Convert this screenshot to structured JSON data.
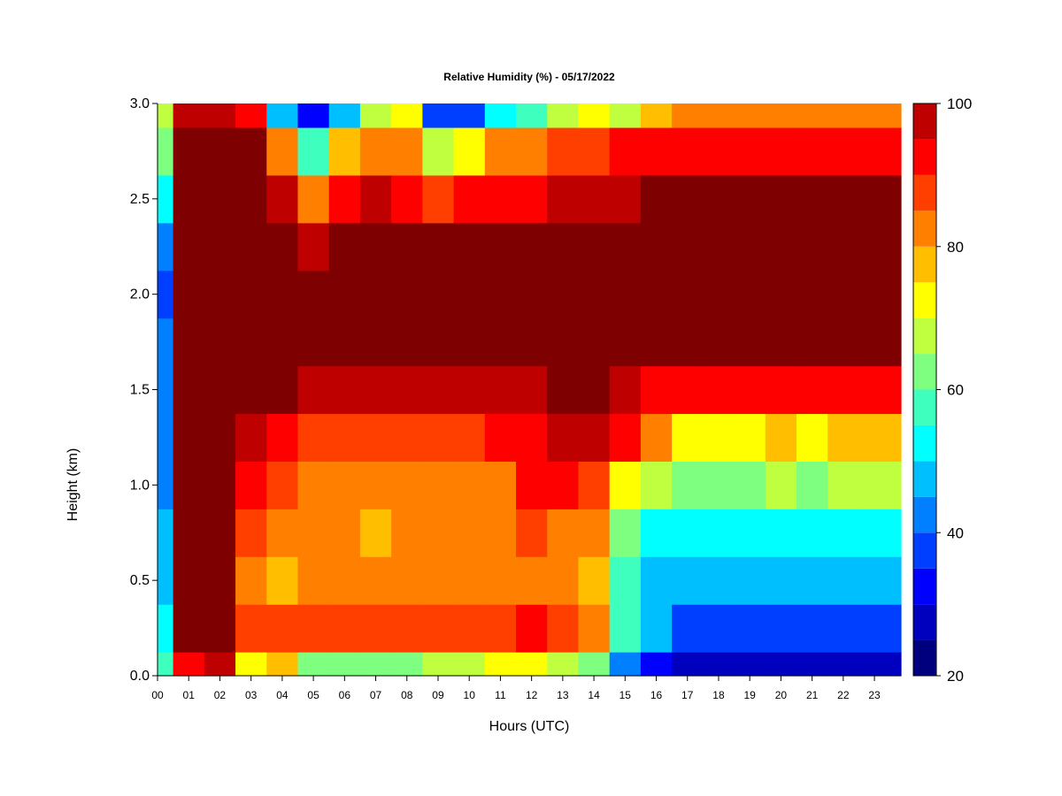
{
  "chart_data": {
    "type": "heatmap",
    "title": "Relative Humidity (%) - 05/17/2022",
    "xlabel": "Hours (UTC)",
    "ylabel": "Height (km)",
    "x_ticks": [
      "00",
      "01",
      "02",
      "03",
      "04",
      "05",
      "06",
      "07",
      "08",
      "09",
      "10",
      "11",
      "12",
      "13",
      "14",
      "15",
      "16",
      "17",
      "18",
      "19",
      "20",
      "21",
      "22",
      "23"
    ],
    "y_ticks": [
      "0.0",
      "0.5",
      "1.0",
      "1.5",
      "2.0",
      "2.5",
      "3.0"
    ],
    "xlim": [
      0,
      23.85
    ],
    "ylim": [
      0,
      3.0
    ],
    "colorbar": {
      "min": 20,
      "max": 100,
      "step": 5,
      "tick_labels": [
        "20",
        "40",
        "60",
        "80",
        "100"
      ],
      "colors": [
        "#00007f",
        "#0000bf",
        "#0000ff",
        "#003fff",
        "#007fff",
        "#00bfff",
        "#00ffff",
        "#3fffbf",
        "#7fff7f",
        "#bfff3f",
        "#ffff00",
        "#ffbf00",
        "#ff7f00",
        "#ff3f00",
        "#ff0000",
        "#bf0000",
        "#7f0000"
      ]
    },
    "z_description": "Relative humidity (%) over time (hours UTC) and height (km)",
    "hours": [
      0,
      1,
      2,
      3,
      4,
      5,
      6,
      7,
      8,
      9,
      10,
      11,
      12,
      13,
      14,
      15,
      16,
      17,
      18,
      19,
      20,
      21,
      22,
      23
    ],
    "heights": [
      0.0,
      0.25,
      0.5,
      0.75,
      1.0,
      1.25,
      1.5,
      1.75,
      2.0,
      2.25,
      2.5,
      2.75,
      3.0
    ],
    "values": [
      [
        55,
        92,
        95,
        72,
        78,
        62,
        62,
        64,
        64,
        66,
        66,
        70,
        72,
        66,
        64,
        40,
        32,
        26,
        25,
        25,
        26,
        26,
        27,
        27
      ],
      [
        50,
        100,
        100,
        88,
        85,
        86,
        86,
        87,
        88,
        87,
        87,
        88,
        92,
        86,
        82,
        55,
        45,
        38,
        36,
        35,
        36,
        37,
        38,
        38
      ],
      [
        48,
        100,
        100,
        84,
        78,
        80,
        80,
        81,
        82,
        81,
        81,
        82,
        84,
        82,
        78,
        58,
        48,
        46,
        46,
        46,
        48,
        48,
        48,
        48
      ],
      [
        46,
        100,
        100,
        86,
        82,
        80,
        80,
        78,
        80,
        80,
        80,
        82,
        86,
        84,
        80,
        62,
        52,
        52,
        52,
        52,
        54,
        54,
        54,
        54
      ],
      [
        44,
        100,
        100,
        92,
        88,
        82,
        82,
        80,
        82,
        82,
        82,
        84,
        90,
        92,
        86,
        72,
        66,
        64,
        62,
        64,
        66,
        64,
        66,
        66
      ],
      [
        42,
        100,
        100,
        96,
        94,
        88,
        88,
        86,
        88,
        88,
        88,
        90,
        94,
        96,
        96,
        90,
        84,
        74,
        74,
        74,
        76,
        74,
        76,
        76
      ],
      [
        40,
        100,
        100,
        100,
        100,
        98,
        98,
        98,
        98,
        98,
        98,
        98,
        99,
        100,
        100,
        98,
        94,
        92,
        92,
        90,
        90,
        90,
        90,
        92
      ],
      [
        40,
        100,
        100,
        100,
        100,
        100,
        100,
        100,
        100,
        100,
        100,
        100,
        100,
        100,
        100,
        100,
        100,
        100,
        100,
        100,
        100,
        100,
        100,
        100
      ],
      [
        38,
        100,
        100,
        100,
        100,
        100,
        100,
        100,
        100,
        100,
        100,
        100,
        100,
        100,
        100,
        100,
        100,
        100,
        100,
        100,
        100,
        100,
        100,
        100
      ],
      [
        42,
        100,
        100,
        100,
        100,
        98,
        100,
        100,
        100,
        100,
        100,
        100,
        100,
        100,
        100,
        100,
        100,
        100,
        100,
        100,
        100,
        100,
        100,
        100
      ],
      [
        50,
        100,
        100,
        100,
        96,
        82,
        94,
        96,
        94,
        88,
        92,
        94,
        94,
        96,
        96,
        98,
        100,
        100,
        100,
        100,
        100,
        100,
        100,
        100
      ],
      [
        60,
        100,
        100,
        100,
        80,
        58,
        76,
        82,
        80,
        66,
        74,
        80,
        82,
        86,
        86,
        90,
        94,
        94,
        92,
        90,
        90,
        92,
        92,
        90
      ],
      [
        66,
        96,
        96,
        90,
        48,
        30,
        46,
        66,
        70,
        38,
        38,
        50,
        56,
        66,
        72,
        68,
        78,
        84,
        80,
        80,
        80,
        82,
        82,
        80
      ]
    ]
  }
}
